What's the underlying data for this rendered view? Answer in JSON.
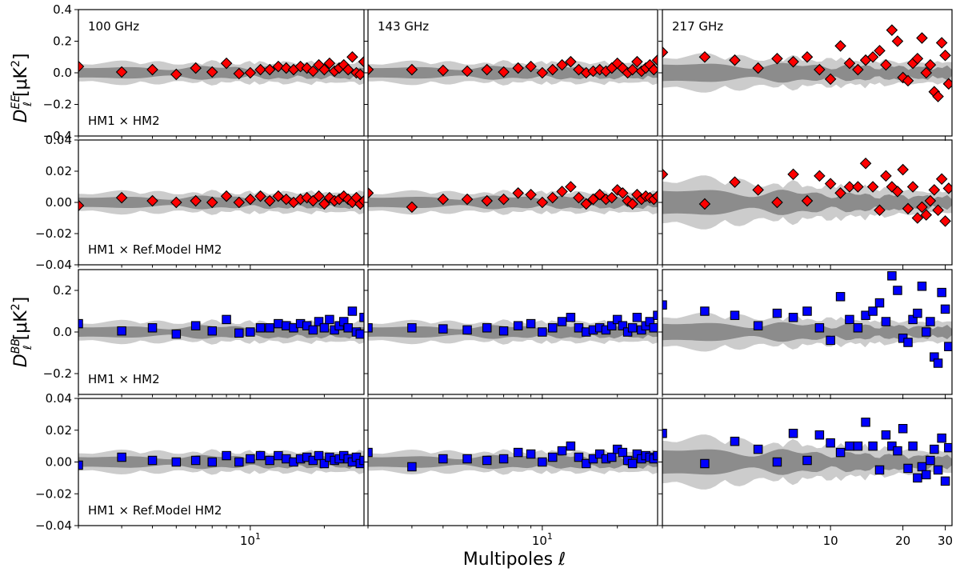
{
  "chart_data": {
    "type": "scatter",
    "xlabel": "Multipoles ℓ",
    "ylabels": {
      "EE": [
        "D",
        "EE",
        "ℓ",
        "[μK",
        "2",
        "]"
      ],
      "BB": [
        "D",
        "BB",
        "ℓ",
        "[μK",
        "2",
        "]"
      ]
    },
    "columns": [
      {
        "frequency_label": "100 GHz",
        "xlim": [
          2,
          29
        ],
        "x_scale": "log",
        "x_tick_labels": [
          {
            "value": 10,
            "base": "10",
            "exp": "1"
          }
        ]
      },
      {
        "frequency_label": "143 GHz",
        "xlim": [
          2,
          29
        ],
        "x_scale": "log",
        "x_tick_labels": [
          {
            "value": 10,
            "base": "10",
            "exp": "1"
          }
        ]
      },
      {
        "frequency_label": "217 GHz",
        "xlim": [
          2,
          32
        ],
        "x_scale": "log",
        "x_tick_labels": [
          {
            "value": 10,
            "text": "10"
          },
          {
            "value": 20,
            "text": "20"
          },
          {
            "value": 30,
            "text": "30"
          }
        ]
      }
    ],
    "rows": [
      {
        "spectrum": "EE",
        "marker": "diamond",
        "color": "#ff0000",
        "panel_label": "HM1 × HM2",
        "ylim": [
          -0.4,
          0.4
        ],
        "y_ticks": [
          -0.4,
          -0.2,
          0.0,
          0.2,
          0.4
        ],
        "y_tick_labels": [
          "−0.4",
          "−0.2",
          "0.0",
          "0.2",
          "0.4"
        ],
        "inner_band": 0.04,
        "outer_band": 0.06
      },
      {
        "spectrum": "EE",
        "marker": "diamond",
        "color": "#ff0000",
        "panel_label": "HM1 × Ref.Model HM2",
        "ylim": [
          -0.04,
          0.04
        ],
        "y_ticks": [
          -0.04,
          -0.02,
          0.0,
          0.02,
          0.04
        ],
        "y_tick_labels": [
          "−0.04",
          "−0.02",
          "0.00",
          "0.02",
          "0.04"
        ],
        "inner_band": 0.004,
        "outer_band": 0.006
      },
      {
        "spectrum": "BB",
        "marker": "square",
        "color": "#0000ff",
        "panel_label": "HM1 × HM2",
        "ylim": [
          -0.3,
          0.3
        ],
        "y_ticks": [
          -0.2,
          0.0,
          0.2
        ],
        "y_tick_labels": [
          "−0.2",
          "0.0",
          "0.2"
        ],
        "inner_band": 0.03,
        "outer_band": 0.045
      },
      {
        "spectrum": "BB",
        "marker": "square",
        "color": "#0000ff",
        "panel_label": "HM1 × Ref.Model HM2",
        "ylim": [
          -0.04,
          0.04
        ],
        "y_ticks": [
          -0.04,
          -0.02,
          0.0,
          0.02,
          0.04
        ],
        "y_tick_labels": [
          "−0.04",
          "−0.02",
          "0.00",
          "0.02",
          "0.04"
        ],
        "inner_band": 0.004,
        "outer_band": 0.006
      }
    ],
    "band_colors": {
      "inner": "#8c8c8c",
      "outer": "#cccccc"
    },
    "series": {
      "c100": {
        "x": [
          2,
          3,
          4,
          5,
          6,
          7,
          8,
          9,
          10,
          11,
          12,
          13,
          14,
          15,
          16,
          17,
          18,
          19,
          20,
          21,
          22,
          23,
          24,
          25,
          26,
          27,
          28,
          29
        ],
        "EE_hm": [
          0.04,
          0.005,
          0.02,
          -0.01,
          0.03,
          0.005,
          0.06,
          -0.005,
          0.0,
          0.02,
          0.02,
          0.04,
          0.03,
          0.02,
          0.04,
          0.03,
          0.01,
          0.05,
          0.02,
          0.06,
          0.01,
          0.03,
          0.05,
          0.02,
          0.1,
          0.0,
          -0.01,
          0.07
        ],
        "EE_ref": [
          -0.002,
          0.003,
          0.001,
          0.0,
          0.001,
          0.0,
          0.004,
          0.0,
          0.002,
          0.004,
          0.001,
          0.004,
          0.002,
          0.0,
          0.002,
          0.003,
          0.001,
          0.004,
          -0.001,
          0.003,
          0.001,
          0.002,
          0.004,
          0.002,
          0.0,
          0.003,
          -0.001,
          0.001
        ],
        "BB_hm": [
          0.04,
          0.005,
          0.02,
          -0.01,
          0.03,
          0.005,
          0.06,
          -0.005,
          0.0,
          0.02,
          0.02,
          0.04,
          0.03,
          0.02,
          0.04,
          0.03,
          0.01,
          0.05,
          0.02,
          0.06,
          0.01,
          0.03,
          0.05,
          0.02,
          0.1,
          0.0,
          -0.01,
          0.07
        ],
        "BB_ref": [
          -0.002,
          0.003,
          0.001,
          0.0,
          0.001,
          0.0,
          0.004,
          0.0,
          0.002,
          0.004,
          0.001,
          0.004,
          0.002,
          0.0,
          0.002,
          0.003,
          0.001,
          0.004,
          -0.001,
          0.003,
          0.001,
          0.002,
          0.004,
          0.002,
          0.0,
          0.003,
          -0.001,
          0.001
        ]
      },
      "c143": {
        "x": [
          2,
          3,
          4,
          5,
          6,
          7,
          8,
          9,
          10,
          11,
          12,
          13,
          14,
          15,
          16,
          17,
          18,
          19,
          20,
          21,
          22,
          23,
          24,
          25,
          26,
          27,
          28,
          29
        ],
        "EE_hm": [
          0.02,
          0.02,
          0.015,
          0.01,
          0.02,
          0.005,
          0.03,
          0.04,
          0.0,
          0.02,
          0.05,
          0.07,
          0.02,
          0.0,
          0.01,
          0.02,
          0.01,
          0.03,
          0.06,
          0.03,
          0.0,
          0.02,
          0.07,
          0.01,
          0.03,
          0.05,
          0.02,
          0.08
        ],
        "EE_ref": [
          0.006,
          -0.003,
          0.002,
          0.002,
          0.001,
          0.002,
          0.006,
          0.005,
          0.0,
          0.003,
          0.007,
          0.01,
          0.003,
          -0.001,
          0.002,
          0.005,
          0.002,
          0.003,
          0.008,
          0.006,
          0.001,
          -0.001,
          0.005,
          0.002,
          0.004,
          0.003,
          0.002,
          0.004
        ],
        "BB_hm": [
          0.02,
          0.02,
          0.015,
          0.01,
          0.02,
          0.005,
          0.03,
          0.04,
          0.0,
          0.02,
          0.05,
          0.07,
          0.02,
          0.0,
          0.01,
          0.02,
          0.01,
          0.03,
          0.06,
          0.03,
          0.0,
          0.02,
          0.07,
          0.01,
          0.03,
          0.05,
          0.02,
          0.08
        ],
        "BB_ref": [
          0.006,
          -0.003,
          0.002,
          0.002,
          0.001,
          0.002,
          0.006,
          0.005,
          0.0,
          0.003,
          0.007,
          0.01,
          0.003,
          -0.001,
          0.002,
          0.005,
          0.002,
          0.003,
          0.008,
          0.006,
          0.001,
          -0.001,
          0.005,
          0.002,
          0.004,
          0.003,
          0.002,
          0.004
        ]
      },
      "c217": {
        "x": [
          2,
          3,
          4,
          5,
          6,
          7,
          8,
          9,
          10,
          11,
          12,
          13,
          14,
          15,
          16,
          17,
          18,
          19,
          20,
          21,
          22,
          23,
          24,
          25,
          26,
          27,
          28,
          29,
          30,
          31
        ],
        "EE_hm": [
          0.13,
          0.1,
          0.08,
          0.03,
          0.09,
          0.07,
          0.1,
          0.02,
          -0.04,
          0.17,
          0.06,
          0.02,
          0.08,
          0.1,
          0.14,
          0.05,
          0.27,
          0.2,
          -0.03,
          -0.05,
          0.06,
          0.09,
          0.22,
          0.0,
          0.05,
          -0.12,
          -0.15,
          0.19,
          0.11,
          -0.07
        ],
        "EE_ref": [
          0.018,
          -0.001,
          0.013,
          0.008,
          0.0,
          0.018,
          0.001,
          0.017,
          0.012,
          0.006,
          0.01,
          0.01,
          0.025,
          0.01,
          -0.005,
          0.017,
          0.01,
          0.007,
          0.021,
          -0.004,
          0.01,
          -0.01,
          -0.003,
          -0.008,
          0.001,
          0.008,
          -0.005,
          0.015,
          -0.012,
          0.009
        ],
        "BB_hm": [
          0.13,
          0.1,
          0.08,
          0.03,
          0.09,
          0.07,
          0.1,
          0.02,
          -0.04,
          0.17,
          0.06,
          0.02,
          0.08,
          0.1,
          0.14,
          0.05,
          0.27,
          0.2,
          -0.03,
          -0.05,
          0.06,
          0.09,
          0.22,
          0.0,
          0.05,
          -0.12,
          -0.15,
          0.19,
          0.11,
          -0.07
        ],
        "BB_ref": [
          0.018,
          -0.001,
          0.013,
          0.008,
          0.0,
          0.018,
          0.001,
          0.017,
          0.012,
          0.006,
          0.01,
          0.01,
          0.025,
          0.01,
          -0.005,
          0.017,
          0.01,
          0.007,
          0.021,
          -0.004,
          0.01,
          -0.01,
          -0.003,
          -0.008,
          0.001,
          0.008,
          -0.005,
          0.015,
          -0.012,
          0.009
        ]
      }
    }
  }
}
